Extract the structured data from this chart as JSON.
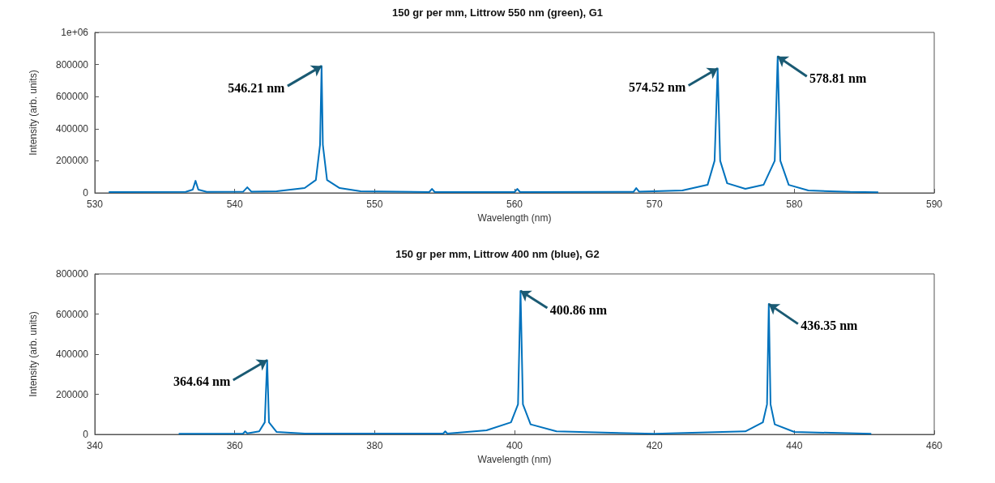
{
  "chart_data": [
    {
      "type": "line",
      "title": "150 gr per mm, Littrow 550 nm (green), G1",
      "xlabel": "Wavelength (nm)",
      "ylabel": "Intensity (arb. units)",
      "xlim": [
        530,
        590
      ],
      "xticks": [
        530,
        540,
        550,
        560,
        570,
        580,
        590
      ],
      "ylim": [
        0,
        1000000
      ],
      "yticks": [
        0,
        200000,
        400000,
        600000,
        800000,
        {
          "value": 1000000,
          "label": "1e+06"
        }
      ],
      "grid": false,
      "marker": "none",
      "line_style": "solid",
      "series": [
        {
          "color": "#0072bd",
          "x": [
            531,
            536.5,
            537.0,
            537.2,
            537.4,
            538,
            540.6,
            540.9,
            541.2,
            543,
            545,
            545.8,
            546.1,
            546.21,
            546.3,
            546.6,
            547.5,
            549,
            553.9,
            554.1,
            554.3,
            560,
            560.2,
            560.4,
            568.5,
            568.7,
            568.9,
            572,
            573.8,
            574.3,
            574.52,
            574.7,
            575.2,
            576.5,
            577.8,
            578.6,
            578.81,
            579.0,
            579.6,
            581,
            584,
            586
          ],
          "values": [
            5000,
            6000,
            20000,
            75000,
            20000,
            6000,
            7000,
            35000,
            7000,
            10000,
            30000,
            80000,
            300000,
            790000,
            300000,
            80000,
            30000,
            10000,
            5000,
            25000,
            5000,
            5000,
            25000,
            5000,
            6000,
            30000,
            8000,
            15000,
            50000,
            200000,
            775000,
            200000,
            60000,
            25000,
            50000,
            200000,
            850000,
            200000,
            50000,
            15000,
            6000,
            4000
          ]
        }
      ],
      "annotations": [
        {
          "text": "546.21 nm",
          "x": 546.21,
          "y": 790000
        },
        {
          "text": "574.52 nm",
          "x": 574.52,
          "y": 775000
        },
        {
          "text": "578.81 nm",
          "x": 578.81,
          "y": 850000
        }
      ]
    },
    {
      "type": "line",
      "title": "150 gr per mm, Littrow 400 nm (blue), G2",
      "xlabel": "Wavelength (nm)",
      "ylabel": "Intensity (arb. units)",
      "xlim": [
        340,
        460
      ],
      "xticks": [
        340,
        360,
        380,
        400,
        420,
        440,
        460
      ],
      "ylim": [
        0,
        800000
      ],
      "yticks": [
        0,
        200000,
        400000,
        600000,
        800000
      ],
      "grid": false,
      "marker": "none",
      "line_style": "solid",
      "series": [
        {
          "color": "#0072bd",
          "x": [
            352,
            361.2,
            361.5,
            361.8,
            363.5,
            364.3,
            364.64,
            364.9,
            366,
            370,
            389.8,
            390.1,
            390.4,
            396,
            399.5,
            400.5,
            400.86,
            401.2,
            402.3,
            406,
            420,
            433,
            435.5,
            436.1,
            436.35,
            436.6,
            437.2,
            440,
            451
          ],
          "values": [
            3000,
            4000,
            15000,
            5000,
            15000,
            60000,
            370000,
            60000,
            12000,
            4000,
            4000,
            15000,
            4000,
            20000,
            60000,
            150000,
            715000,
            150000,
            50000,
            15000,
            3000,
            15000,
            60000,
            150000,
            650000,
            150000,
            50000,
            12000,
            3000
          ]
        }
      ],
      "annotations": [
        {
          "text": "364.64 nm",
          "x": 364.64,
          "y": 370000
        },
        {
          "text": "400.86 nm",
          "x": 400.86,
          "y": 715000
        },
        {
          "text": "436.35 nm",
          "x": 436.35,
          "y": 650000
        }
      ]
    }
  ]
}
